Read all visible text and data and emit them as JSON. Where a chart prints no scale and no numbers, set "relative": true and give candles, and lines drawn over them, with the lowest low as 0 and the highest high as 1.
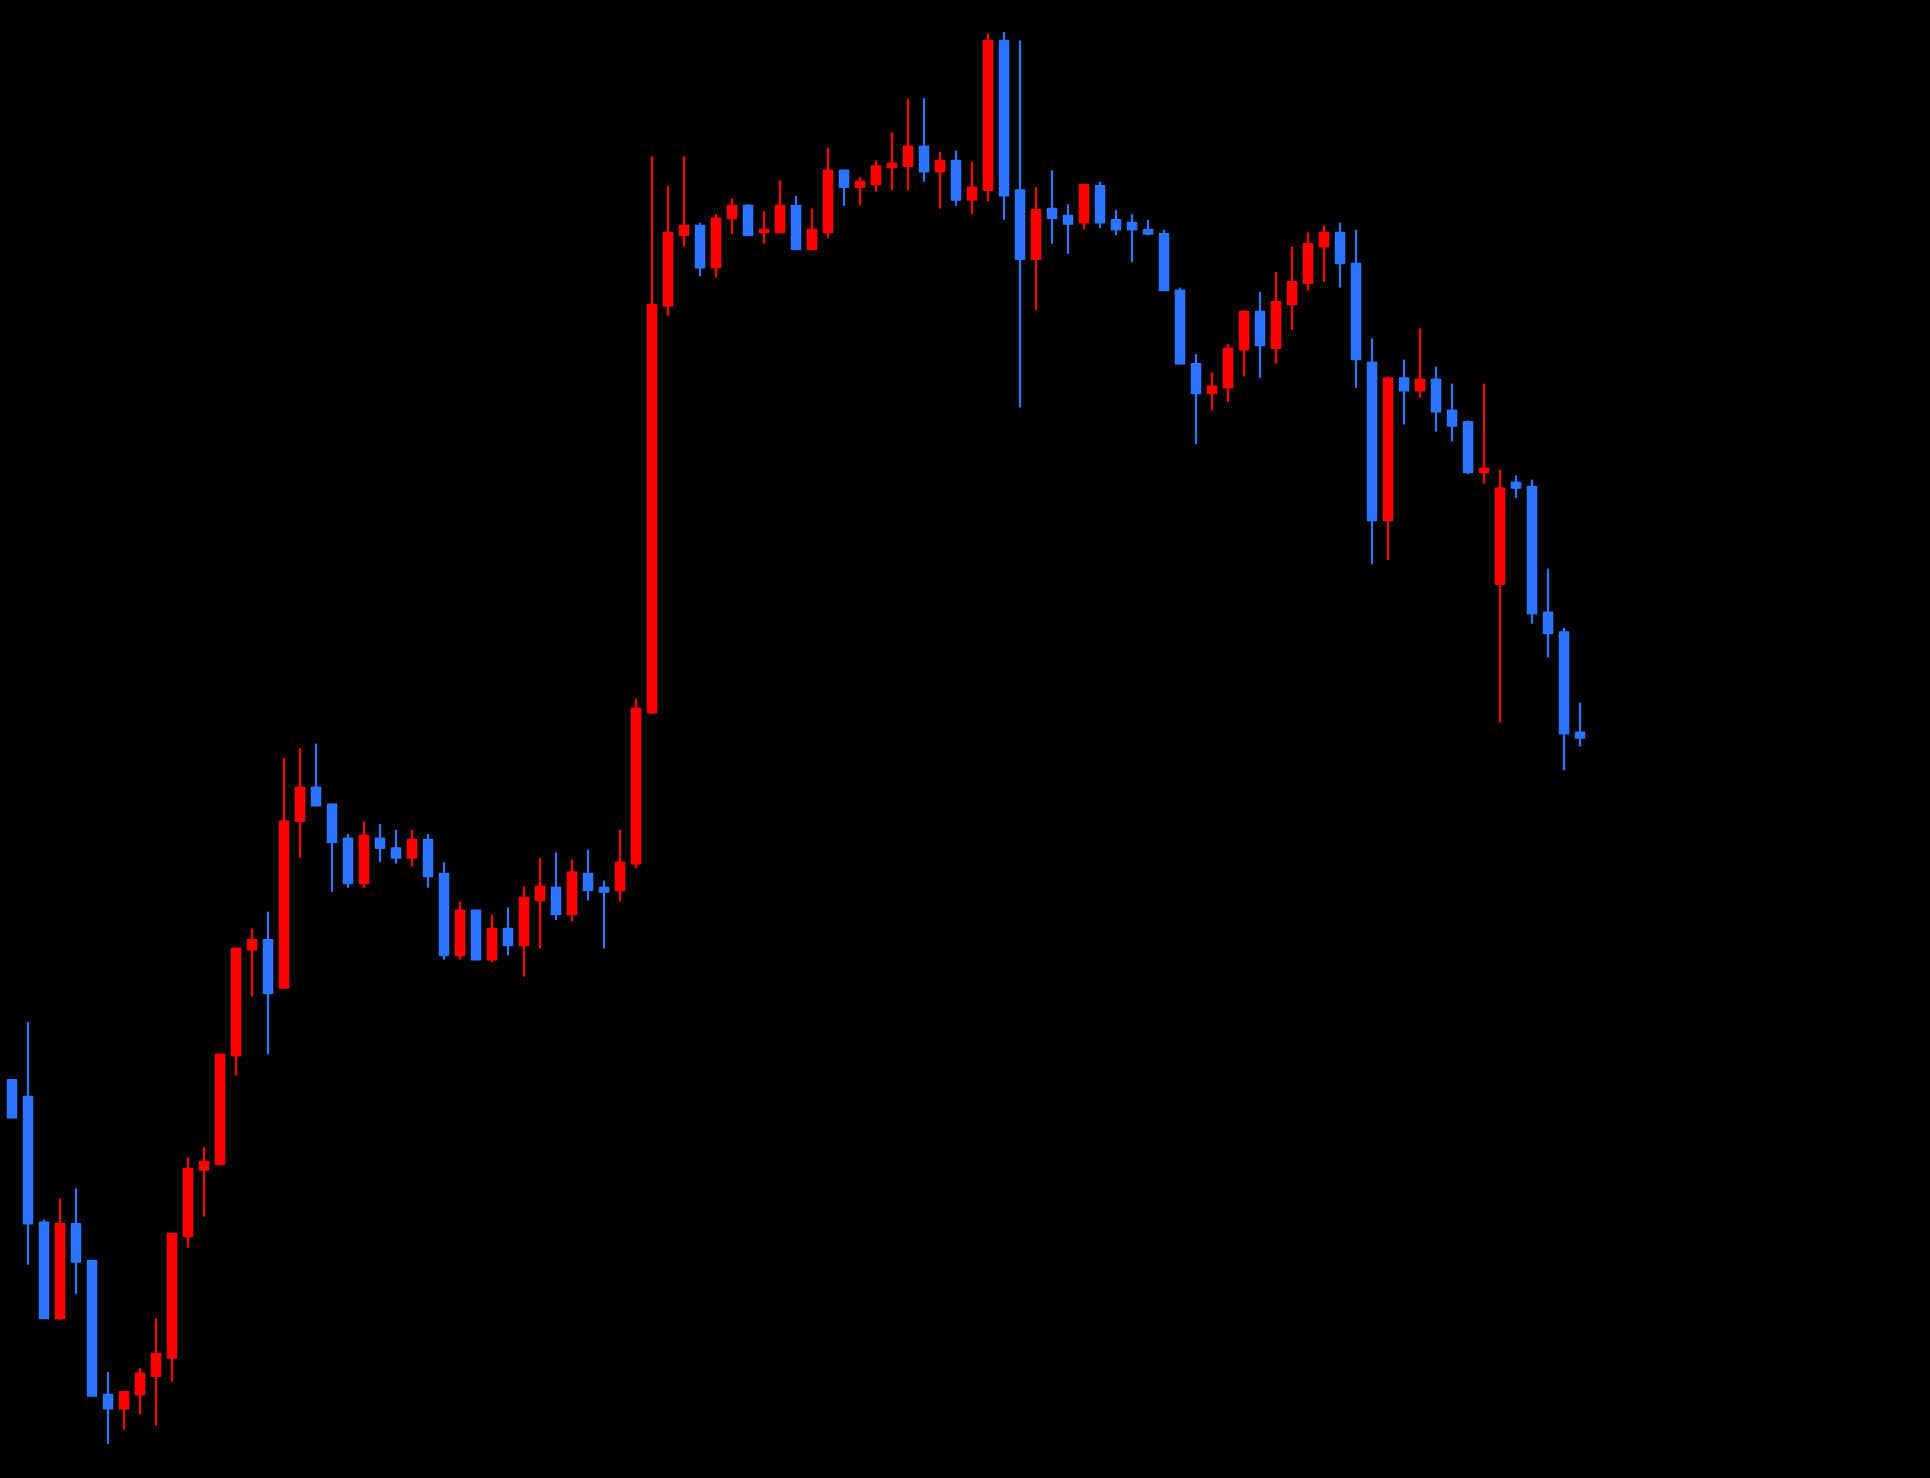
{
  "chart_data": {
    "type": "candlestick",
    "relative": true,
    "categories": [
      null,
      null,
      null,
      null,
      null,
      null,
      null,
      null,
      null,
      null,
      null,
      null,
      null,
      null,
      null,
      null,
      null,
      null,
      null,
      null,
      null,
      null,
      null,
      null,
      null,
      null,
      null,
      null,
      null,
      null,
      null,
      null,
      null,
      null,
      null,
      null,
      null,
      null,
      null,
      null,
      null,
      null,
      null,
      null,
      null,
      null,
      null,
      null,
      null,
      null,
      null,
      null,
      null,
      null,
      null,
      null,
      null,
      null,
      null,
      null,
      null,
      null,
      null,
      null,
      null,
      null,
      null,
      null,
      null,
      null,
      null,
      null,
      null,
      null,
      null,
      null,
      null,
      null,
      null,
      null,
      null,
      null,
      null,
      null,
      null,
      null,
      null,
      null,
      null,
      null,
      null,
      null,
      null,
      null,
      null,
      null,
      null,
      null,
      null
    ],
    "ohlc": [
      [
        0.258,
        0.258,
        0.231,
        0.231
      ],
      [
        0.246,
        0.299,
        0.127,
        0.156
      ],
      [
        0.157,
        0.159,
        0.089,
        0.089
      ],
      [
        0.089,
        0.174,
        0.088,
        0.156
      ],
      [
        0.156,
        0.181,
        0.106,
        0.129
      ],
      [
        0.13,
        0.13,
        0.034,
        0.034
      ],
      [
        0.035,
        0.051,
        0,
        0.025
      ],
      [
        0.025,
        0.037,
        0.01,
        0.037
      ],
      [
        0.035,
        0.054,
        0.021,
        0.05
      ],
      [
        0.048,
        0.089,
        0.013,
        0.064
      ],
      [
        0.061,
        0.149,
        0.044,
        0.149
      ],
      [
        0.147,
        0.203,
        0.139,
        0.195
      ],
      [
        0.194,
        0.21,
        0.161,
        0.2
      ],
      [
        0.198,
        0.276,
        0.198,
        0.276
      ],
      [
        0.275,
        0.351,
        0.261,
        0.351
      ],
      [
        0.35,
        0.365,
        0.317,
        0.357
      ],
      [
        0.357,
        0.377,
        0.276,
        0.319
      ],
      [
        0.323,
        0.486,
        0.323,
        0.441
      ],
      [
        0.441,
        0.493,
        0.415,
        0.465
      ],
      [
        0.465,
        0.496,
        0.452,
        0.452
      ],
      [
        0.453,
        0.453,
        0.391,
        0.426
      ],
      [
        0.429,
        0.432,
        0.394,
        0.397
      ],
      [
        0.397,
        0.441,
        0.394,
        0.431
      ],
      [
        0.429,
        0.439,
        0.412,
        0.422
      ],
      [
        0.422,
        0.435,
        0.411,
        0.415
      ],
      [
        0.415,
        0.435,
        0.409,
        0.428
      ],
      [
        0.428,
        0.432,
        0.394,
        0.402
      ],
      [
        0.404,
        0.412,
        0.343,
        0.346
      ],
      [
        0.346,
        0.384,
        0.343,
        0.378
      ],
      [
        0.378,
        0.378,
        0.343,
        0.343
      ],
      [
        0.343,
        0.375,
        0.341,
        0.365
      ],
      [
        0.365,
        0.38,
        0.346,
        0.353
      ],
      [
        0.353,
        0.395,
        0.331,
        0.387
      ],
      [
        0.385,
        0.415,
        0.351,
        0.395
      ],
      [
        0.394,
        0.419,
        0.371,
        0.375
      ],
      [
        0.375,
        0.414,
        0.37,
        0.405
      ],
      [
        0.404,
        0.421,
        0.385,
        0.392
      ],
      [
        0.394,
        0.399,
        0.351,
        0.391
      ],
      [
        0.392,
        0.435,
        0.384,
        0.412
      ],
      [
        0.411,
        0.528,
        0.408,
        0.521
      ],
      [
        0.518,
        0.912,
        0.517,
        0.807
      ],
      [
        0.806,
        0.891,
        0.799,
        0.858
      ],
      [
        0.856,
        0.912,
        0.848,
        0.863
      ],
      [
        0.863,
        0.865,
        0.827,
        0.833
      ],
      [
        0.833,
        0.871,
        0.826,
        0.868
      ],
      [
        0.868,
        0.882,
        0.857,
        0.877
      ],
      [
        0.877,
        0.878,
        0.856,
        0.856
      ],
      [
        0.858,
        0.873,
        0.85,
        0.86
      ],
      [
        0.858,
        0.895,
        0.858,
        0.877
      ],
      [
        0.877,
        0.884,
        0.846,
        0.846
      ],
      [
        0.846,
        0.875,
        0.846,
        0.86
      ],
      [
        0.858,
        0.918,
        0.854,
        0.902
      ],
      [
        0.902,
        0.902,
        0.877,
        0.89
      ],
      [
        0.89,
        0.897,
        0.877,
        0.894
      ],
      [
        0.892,
        0.909,
        0.887,
        0.905
      ],
      [
        0.904,
        0.929,
        0.888,
        0.907
      ],
      [
        0.905,
        0.953,
        0.888,
        0.919
      ],
      [
        0.919,
        0.953,
        0.894,
        0.901
      ],
      [
        0.901,
        0.915,
        0.875,
        0.909
      ],
      [
        0.909,
        0.916,
        0.877,
        0.881
      ],
      [
        0.881,
        0.908,
        0.871,
        0.89
      ],
      [
        0.888,
        0.999,
        0.88,
        0.994
      ],
      [
        0.994,
        1,
        0.867,
        0.884
      ],
      [
        0.888,
        0.994,
        0.734,
        0.839
      ],
      [
        0.839,
        0.89,
        0.803,
        0.874
      ],
      [
        0.875,
        0.902,
        0.85,
        0.868
      ],
      [
        0.87,
        0.878,
        0.843,
        0.864
      ],
      [
        0.865,
        0.892,
        0.86,
        0.892
      ],
      [
        0.891,
        0.894,
        0.861,
        0.865
      ],
      [
        0.867,
        0.874,
        0.856,
        0.86
      ],
      [
        0.865,
        0.871,
        0.837,
        0.86
      ],
      [
        0.86,
        0.867,
        0.856,
        0.857
      ],
      [
        0.857,
        0.86,
        0.817,
        0.817
      ],
      [
        0.817,
        0.819,
        0.765,
        0.765
      ],
      [
        0.765,
        0.772,
        0.708,
        0.744
      ],
      [
        0.744,
        0.759,
        0.732,
        0.749
      ],
      [
        0.748,
        0.779,
        0.738,
        0.776
      ],
      [
        0.775,
        0.803,
        0.756,
        0.802
      ],
      [
        0.802,
        0.816,
        0.755,
        0.778
      ],
      [
        0.776,
        0.83,
        0.765,
        0.809
      ],
      [
        0.807,
        0.848,
        0.789,
        0.823
      ],
      [
        0.822,
        0.858,
        0.817,
        0.85
      ],
      [
        0.848,
        0.863,
        0.823,
        0.858
      ],
      [
        0.858,
        0.865,
        0.819,
        0.836
      ],
      [
        0.836,
        0.86,
        0.748,
        0.768
      ],
      [
        0.766,
        0.783,
        0.623,
        0.654
      ],
      [
        0.654,
        0.756,
        0.626,
        0.755
      ],
      [
        0.755,
        0.768,
        0.722,
        0.746
      ],
      [
        0.746,
        0.79,
        0.741,
        0.754
      ],
      [
        0.754,
        0.763,
        0.717,
        0.731
      ],
      [
        0.732,
        0.751,
        0.71,
        0.721
      ],
      [
        0.724,
        0.725,
        0.687,
        0.688
      ],
      [
        0.688,
        0.751,
        0.68,
        0.691
      ],
      [
        0.609,
        0.69,
        0.511,
        0.677
      ],
      [
        0.681,
        0.686,
        0.67,
        0.677
      ],
      [
        0.678,
        0.683,
        0.581,
        0.588
      ],
      [
        0.589,
        0.62,
        0.557,
        0.574
      ],
      [
        0.575,
        0.578,
        0.477,
        0.503
      ],
      [
        0.504,
        0.525,
        0.494,
        0.5
      ]
    ],
    "colors": [
      "#2b75ff",
      "#2b75ff",
      "#2b75ff",
      "#ff0000",
      "#2b75ff",
      "#2b75ff",
      "#2b75ff",
      "#ff0000",
      "#ff0000",
      "#ff0000",
      "#ff0000",
      "#ff0000",
      "#ff0000",
      "#ff0000",
      "#ff0000",
      "#ff0000",
      "#2b75ff",
      "#ff0000",
      "#ff0000",
      "#2b75ff",
      "#2b75ff",
      "#2b75ff",
      "#ff0000",
      "#2b75ff",
      "#2b75ff",
      "#ff0000",
      "#2b75ff",
      "#2b75ff",
      "#ff0000",
      "#2b75ff",
      "#ff0000",
      "#2b75ff",
      "#ff0000",
      "#ff0000",
      "#2b75ff",
      "#ff0000",
      "#2b75ff",
      "#2b75ff",
      "#ff0000",
      "#ff0000",
      "#ff0000",
      "#ff0000",
      "#ff0000",
      "#2b75ff",
      "#ff0000",
      "#ff0000",
      "#2b75ff",
      "#ff0000",
      "#ff0000",
      "#2b75ff",
      "#ff0000",
      "#ff0000",
      "#2b75ff",
      "#ff0000",
      "#ff0000",
      "#ff0000",
      "#ff0000",
      "#2b75ff",
      "#ff0000",
      "#2b75ff",
      "#ff0000",
      "#ff0000",
      "#2b75ff",
      "#2b75ff",
      "#ff0000",
      "#2b75ff",
      "#2b75ff",
      "#ff0000",
      "#2b75ff",
      "#2b75ff",
      "#2b75ff",
      "#2b75ff",
      "#2b75ff",
      "#2b75ff",
      "#2b75ff",
      "#ff0000",
      "#ff0000",
      "#ff0000",
      "#2b75ff",
      "#ff0000",
      "#ff0000",
      "#ff0000",
      "#ff0000",
      "#2b75ff",
      "#2b75ff",
      "#2b75ff",
      "#ff0000",
      "#2b75ff",
      "#ff0000",
      "#2b75ff",
      "#2b75ff",
      "#2b75ff",
      "#ff0000",
      "#ff0000",
      "#2b75ff",
      "#2b75ff",
      "#2b75ff",
      "#2b75ff",
      "#2b75ff"
    ]
  }
}
